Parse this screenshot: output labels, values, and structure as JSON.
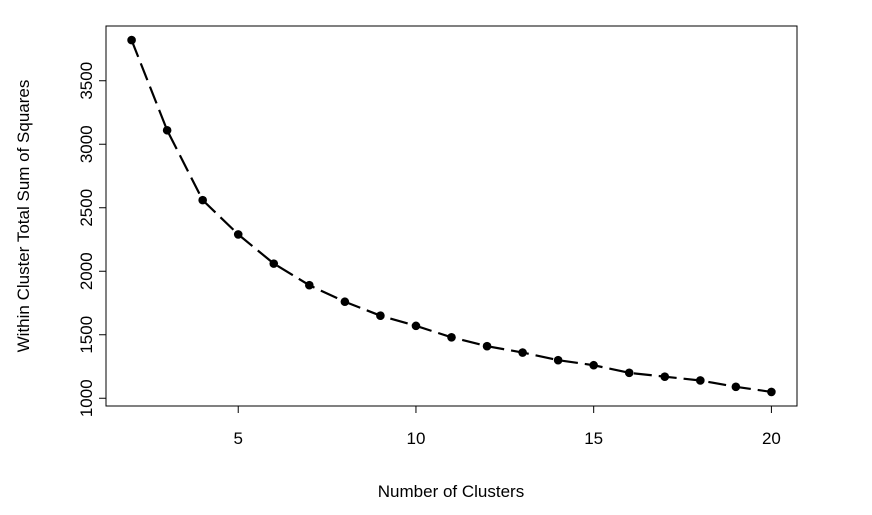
{
  "chart_data": {
    "type": "line",
    "x_label": "Number of Clusters",
    "y_label": "Within Cluster Total Sum of Squares",
    "x": [
      2,
      3,
      4,
      5,
      6,
      7,
      8,
      9,
      10,
      11,
      12,
      13,
      14,
      15,
      16,
      17,
      18,
      19,
      20
    ],
    "y": [
      3820,
      3110,
      2560,
      2290,
      2060,
      1890,
      1760,
      1650,
      1570,
      1480,
      1410,
      1360,
      1300,
      1260,
      1200,
      1170,
      1140,
      1090,
      1050
    ],
    "color": "#000000",
    "xlim": [
      1.28,
      20.72
    ],
    "ylim": [
      939,
      3931
    ],
    "xticks": [
      5,
      10,
      15,
      20
    ],
    "yticks": [
      1000,
      1500,
      2000,
      2500,
      3000,
      3500
    ]
  }
}
